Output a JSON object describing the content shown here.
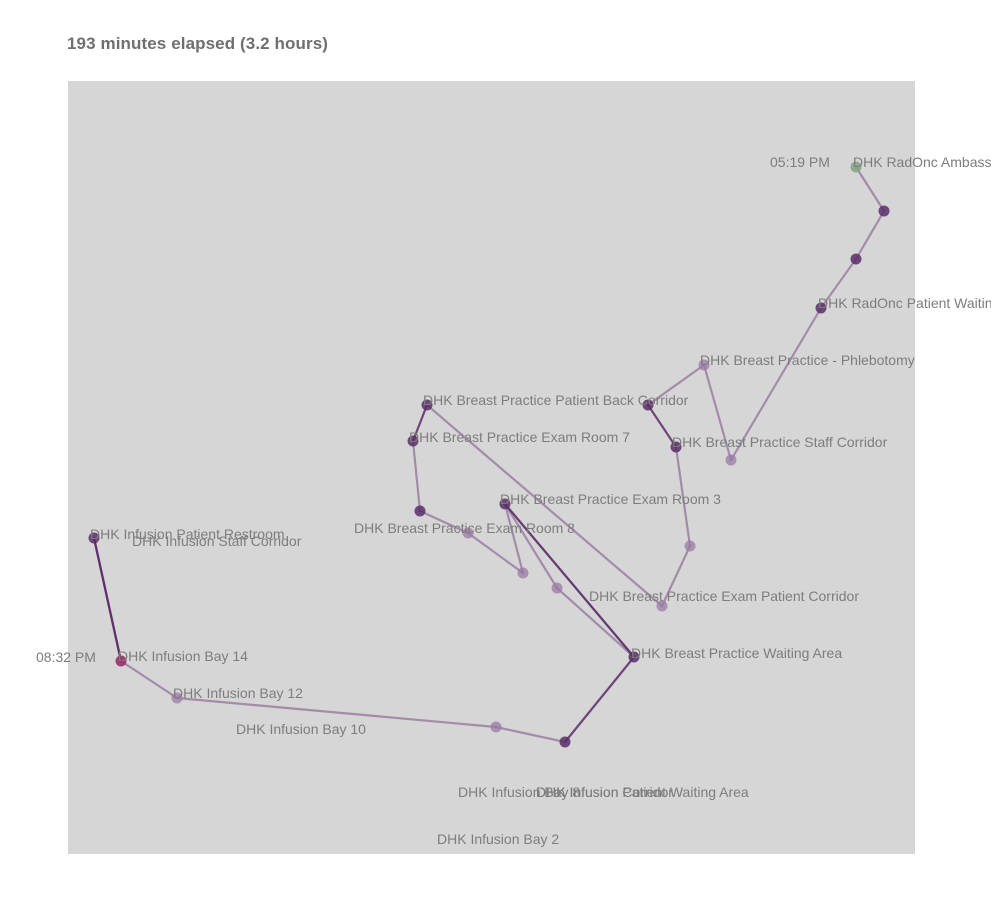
{
  "header": {
    "title": "193 minutes elapsed (3.2 hours)"
  },
  "colors": {
    "panel": "#d6d6d6",
    "edge": "#7a4e86",
    "edge_strong": "#5a2e68",
    "node_light": "#9a7aa5",
    "node_dark": "#5a2e68",
    "start_node": "#8aa38a",
    "end_node": "#9b2f6a",
    "label": "#7d7d7d"
  },
  "time_labels": {
    "start": "05:19 PM",
    "end": "08:32 PM"
  },
  "locations": [
    {
      "id": "radonc_amb",
      "label": "DHK RadOnc Ambass"
    },
    {
      "id": "radonc_wait",
      "label": "DHK RadOnc Patient Waitin"
    },
    {
      "id": "bp_phleb",
      "label": "DHK Breast Practice - Phlebotomy"
    },
    {
      "id": "bp_back",
      "label": "DHK Breast Practice Patient Back Corridor"
    },
    {
      "id": "bp_staff",
      "label": "DHK Breast Practice Staff Corridor"
    },
    {
      "id": "bp_exam7",
      "label": "DHK Breast Practice Exam Room 7"
    },
    {
      "id": "bp_exam3",
      "label": "DHK Breast Practice Exam Room 3"
    },
    {
      "id": "bp_exam8",
      "label": "DHK Breast Practice Exam Room 8"
    },
    {
      "id": "inf_restroom",
      "label": "DHK Infusion Patient Restroom"
    },
    {
      "id": "inf_staff",
      "label": "DHK Infusion Staff Corridor"
    },
    {
      "id": "bp_exam_corr",
      "label": "DHK Breast Practice Exam Patient Corridor"
    },
    {
      "id": "bp_waiting",
      "label": "DHK Breast Practice Waiting Area"
    },
    {
      "id": "inf_bay14",
      "label": "DHK Infusion Bay 14"
    },
    {
      "id": "inf_bay12",
      "label": "DHK Infusion Bay 12"
    },
    {
      "id": "inf_bay10",
      "label": "DHK Infusion Bay 10"
    },
    {
      "id": "inf_bay8",
      "label": "DHK Infusion Bay 8"
    },
    {
      "id": "inf_corridor",
      "label": "DHK Infusion Corridor"
    },
    {
      "id": "inf_wait",
      "label": "DHK Infusion Patient Waiting Area"
    },
    {
      "id": "inf_bay2",
      "label": "DHK Infusion Bay 2"
    }
  ],
  "path": [
    "radonc_amb",
    "radonc_amb_2",
    "radonc_amb_3",
    "radonc_wait",
    "bp_staff",
    "bp_phleb",
    "bp_back",
    "bp_staff_node",
    "bp_exam_mid",
    "bp_exam_corr",
    "bp_back_node",
    "bp_exam7",
    "bp_exam8_node",
    "bp_exam8_pt",
    "bp_exam3_sub",
    "bp_exam3",
    "bp_exam3_sub2",
    "bp_waiting",
    "bp_exam3",
    "bp_waiting",
    "inf_corridor",
    "inf_bay10",
    "inf_bay12",
    "inf_bay14",
    "inf_restroom",
    "inf_bay14"
  ]
}
